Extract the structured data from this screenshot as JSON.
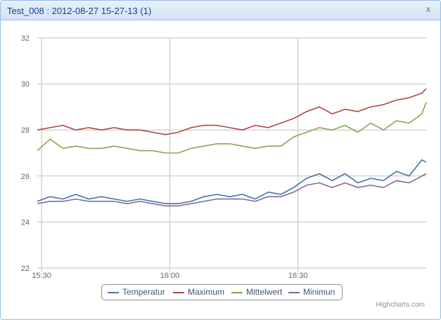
{
  "window": {
    "title": "Test_008 : 2012-08-27 15-27-13 (1)",
    "close_label": "x"
  },
  "credits": "Highcharts.com",
  "colors": {
    "Temperatur": "#4572a7",
    "Maximum": "#aa4643",
    "Mittelwert": "#89a54e",
    "Minimun": "#80699b",
    "grid": "#c0c0c0",
    "axis_label": "#666666"
  },
  "chart_data": {
    "type": "line",
    "title": "Test_008 : 2012-08-27 15-27-13 (1)",
    "xlabel": "",
    "ylabel": "",
    "x_range": [
      "15:29",
      "17:00"
    ],
    "x_ticks": [
      "15:30",
      "16:00",
      "16:30"
    ],
    "ylim": [
      22,
      32
    ],
    "y_ticks": [
      "22",
      "24",
      "26",
      "28",
      "30",
      "32"
    ],
    "grid": true,
    "legend_position": "bottom-center",
    "series": [
      {
        "name": "Temperatur",
        "x": [
          "15:29",
          "15:32",
          "15:35",
          "15:38",
          "15:41",
          "15:44",
          "15:47",
          "15:50",
          "15:53",
          "15:56",
          "15:59",
          "16:02",
          "16:05",
          "16:08",
          "16:11",
          "16:14",
          "16:17",
          "16:20",
          "16:23",
          "16:26",
          "16:29",
          "16:32",
          "16:35",
          "16:38",
          "16:41",
          "16:44",
          "16:47",
          "16:50",
          "16:53",
          "16:56",
          "16:59",
          "17:00"
        ],
        "values": [
          24.9,
          25.1,
          25.0,
          25.2,
          25.0,
          25.1,
          25.0,
          24.9,
          25.0,
          24.9,
          24.8,
          24.8,
          24.9,
          25.1,
          25.2,
          25.1,
          25.2,
          25.0,
          25.3,
          25.2,
          25.5,
          25.9,
          26.1,
          25.8,
          26.1,
          25.7,
          25.9,
          25.8,
          26.2,
          26.0,
          26.7,
          26.6
        ]
      },
      {
        "name": "Maximum",
        "x": [
          "15:29",
          "15:32",
          "15:35",
          "15:38",
          "15:41",
          "15:44",
          "15:47",
          "15:50",
          "15:53",
          "15:56",
          "15:59",
          "16:02",
          "16:05",
          "16:08",
          "16:11",
          "16:14",
          "16:17",
          "16:20",
          "16:23",
          "16:26",
          "16:29",
          "16:32",
          "16:35",
          "16:38",
          "16:41",
          "16:44",
          "16:47",
          "16:50",
          "16:53",
          "16:56",
          "16:59",
          "17:00"
        ],
        "values": [
          28.0,
          28.1,
          28.2,
          28.0,
          28.1,
          28.0,
          28.1,
          28.0,
          28.0,
          27.9,
          27.8,
          27.9,
          28.1,
          28.2,
          28.2,
          28.1,
          28.0,
          28.2,
          28.1,
          28.3,
          28.5,
          28.8,
          29.0,
          28.7,
          28.9,
          28.8,
          29.0,
          29.1,
          29.3,
          29.4,
          29.6,
          29.8
        ]
      },
      {
        "name": "Mittelwert",
        "x": [
          "15:29",
          "15:32",
          "15:35",
          "15:38",
          "15:41",
          "15:44",
          "15:47",
          "15:50",
          "15:53",
          "15:56",
          "15:59",
          "16:02",
          "16:05",
          "16:08",
          "16:11",
          "16:14",
          "16:17",
          "16:20",
          "16:23",
          "16:26",
          "16:29",
          "16:32",
          "16:35",
          "16:38",
          "16:41",
          "16:44",
          "16:47",
          "16:50",
          "16:53",
          "16:56",
          "16:59",
          "17:00"
        ],
        "values": [
          27.1,
          27.6,
          27.2,
          27.3,
          27.2,
          27.2,
          27.3,
          27.2,
          27.1,
          27.1,
          27.0,
          27.0,
          27.2,
          27.3,
          27.4,
          27.4,
          27.3,
          27.2,
          27.3,
          27.3,
          27.7,
          27.9,
          28.1,
          28.0,
          28.2,
          27.9,
          28.3,
          28.0,
          28.4,
          28.3,
          28.7,
          29.2
        ]
      },
      {
        "name": "Minimun",
        "x": [
          "15:29",
          "15:32",
          "15:35",
          "15:38",
          "15:41",
          "15:44",
          "15:47",
          "15:50",
          "15:53",
          "15:56",
          "15:59",
          "16:02",
          "16:05",
          "16:08",
          "16:11",
          "16:14",
          "16:17",
          "16:20",
          "16:23",
          "16:26",
          "16:29",
          "16:32",
          "16:35",
          "16:38",
          "16:41",
          "16:44",
          "16:47",
          "16:50",
          "16:53",
          "16:56",
          "16:59",
          "17:00"
        ],
        "values": [
          24.8,
          24.9,
          24.9,
          25.0,
          24.9,
          24.9,
          24.9,
          24.8,
          24.9,
          24.8,
          24.7,
          24.7,
          24.8,
          24.9,
          25.0,
          25.0,
          25.0,
          24.9,
          25.1,
          25.1,
          25.3,
          25.6,
          25.7,
          25.5,
          25.7,
          25.5,
          25.6,
          25.5,
          25.8,
          25.7,
          26.0,
          26.1
        ]
      }
    ]
  }
}
